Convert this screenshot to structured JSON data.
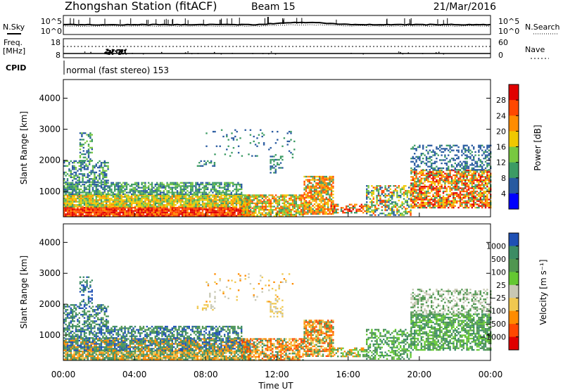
{
  "header": {
    "station": "Zhongshan Station (fitACF)",
    "beam": "Beam 15",
    "date": "21/Mar/2016"
  },
  "side_labels": {
    "nsky": "N.Sky",
    "nsearch": "N.Search",
    "freq_top": "Freq.",
    "freq_unit": "[MHz]",
    "nave": "Nave",
    "cpid": "CPID"
  },
  "noise_panel": {
    "left_ticks": [
      "10^5",
      "10^0"
    ],
    "right_ticks": [
      "10^5",
      "10^0"
    ]
  },
  "freq_panel": {
    "left_ticks": [
      "18",
      "8"
    ],
    "right_ticks": [
      "60",
      "0"
    ]
  },
  "cpid_text": "normal (fast stereo) 153",
  "time_axis": {
    "ticks": [
      "00:00",
      "04:00",
      "08:00",
      "12:00",
      "16:00",
      "20:00",
      "00:00"
    ],
    "label": "Time UT"
  },
  "chart_data": [
    {
      "type": "heatmap",
      "panel": "power",
      "ylabel": "Slant Range [km]",
      "yticks": [
        1000,
        2000,
        3000,
        4000
      ],
      "ylim": [
        180,
        4600
      ],
      "xlim_hours": [
        0,
        24
      ],
      "colorbar": {
        "label": "Power [dB]",
        "ticks": [
          "28",
          "24",
          "20",
          "16",
          "12",
          "8",
          "4"
        ],
        "colors": [
          "#e00000",
          "#ff4800",
          "#ff8c00",
          "#f0c800",
          "#78c840",
          "#3c9b64",
          "#285aa0",
          "#0000ff"
        ]
      }
    },
    {
      "type": "heatmap",
      "panel": "velocity",
      "ylabel": "Slant Range [km]",
      "yticks": [
        1000,
        2000,
        3000,
        4000
      ],
      "ylim": [
        180,
        4600
      ],
      "xlim_hours": [
        0,
        24
      ],
      "colorbar": {
        "label": "Velocity [m s⁻¹]",
        "ticks": [
          "1000",
          "500",
          "100",
          "25",
          "−25",
          "−100",
          "−500",
          "−1000"
        ],
        "colors": [
          "#1e50b4",
          "#3c8c64",
          "#509650",
          "#64c832",
          "#c8c8b4",
          "#f0c850",
          "#ff8c00",
          "#ff4800",
          "#e00000"
        ]
      }
    }
  ]
}
